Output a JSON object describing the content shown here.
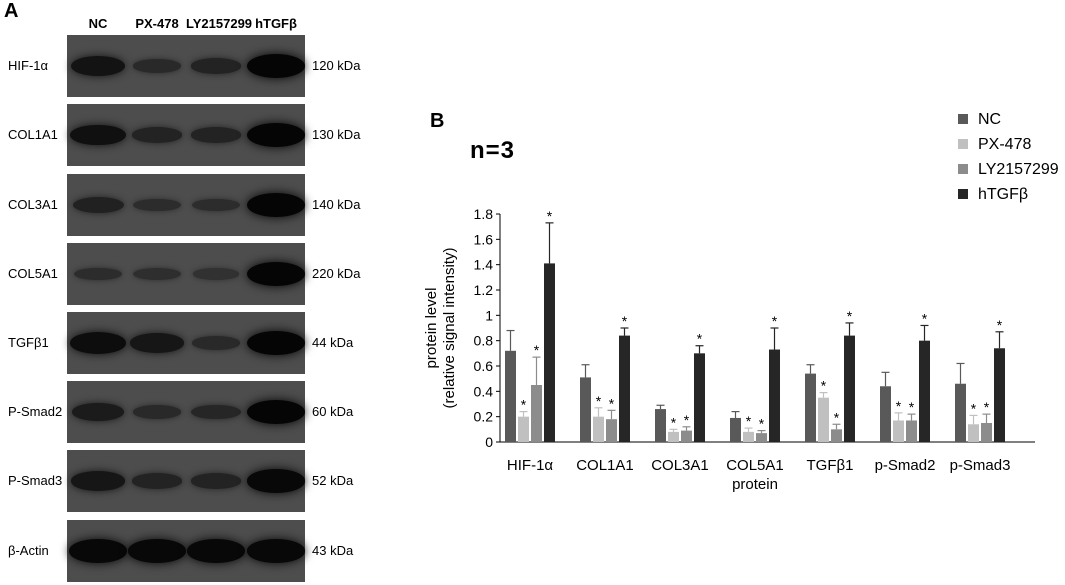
{
  "panel_a": {
    "letter": "A",
    "lanes": [
      "NC",
      "PX-478",
      "LY2157299",
      "hTGFβ"
    ],
    "rows": [
      {
        "protein": "HIF-1α",
        "kda": "120 kDa",
        "intensity": [
          0.75,
          0.35,
          0.45,
          1.0
        ]
      },
      {
        "protein": "COL1A1",
        "kda": "130 kDa",
        "intensity": [
          0.8,
          0.45,
          0.45,
          1.0
        ]
      },
      {
        "protein": "COL3A1",
        "kda": "140 kDa",
        "intensity": [
          0.5,
          0.3,
          0.3,
          1.0
        ]
      },
      {
        "protein": "COL5A1",
        "kda": "220 kDa",
        "intensity": [
          0.3,
          0.25,
          0.2,
          1.0
        ]
      },
      {
        "protein": "TGFβ1",
        "kda": "44 kDa",
        "intensity": [
          0.85,
          0.7,
          0.35,
          1.0
        ]
      },
      {
        "protein": "P-Smad2",
        "kda": "60 kDa",
        "intensity": [
          0.6,
          0.35,
          0.4,
          1.0
        ]
      },
      {
        "protein": "P-Smad3",
        "kda": "52 kDa",
        "intensity": [
          0.7,
          0.45,
          0.45,
          0.95
        ]
      },
      {
        "protein": "β-Actin",
        "kda": "43 kDa",
        "intensity": [
          0.95,
          0.95,
          0.95,
          0.95
        ]
      }
    ]
  },
  "panel_b": {
    "letter": "B",
    "n_label": "n=3"
  },
  "chart_data": {
    "type": "bar",
    "title": "",
    "ylabel_line1": "protein level",
    "ylabel_line2": "(relative signal intensity)",
    "xlabel": "",
    "ylim": [
      0,
      1.8
    ],
    "yticks": [
      "0",
      "0.2",
      "0.4",
      "0.6",
      "0.8",
      "1",
      "1.2",
      "1.4",
      "1.6",
      "1.8"
    ],
    "categories": [
      "HIF-1α",
      "COL1A1",
      "COL3A1",
      "COL5A1\nprotein",
      "TGFβ1",
      "p-Smad2",
      "p-Smad3"
    ],
    "legend_position": "top-right",
    "series": [
      {
        "name": "NC",
        "color": "#595959",
        "values": [
          0.72,
          0.51,
          0.26,
          0.19,
          0.54,
          0.44,
          0.46
        ],
        "errors": [
          0.16,
          0.1,
          0.03,
          0.05,
          0.07,
          0.11,
          0.16
        ],
        "stars": [
          false,
          false,
          false,
          false,
          false,
          false,
          false
        ]
      },
      {
        "name": "PX-478",
        "color": "#c0c0c0",
        "values": [
          0.2,
          0.2,
          0.08,
          0.08,
          0.35,
          0.17,
          0.14
        ],
        "errors": [
          0.04,
          0.07,
          0.02,
          0.03,
          0.04,
          0.06,
          0.07
        ],
        "stars": [
          true,
          true,
          true,
          true,
          true,
          true,
          true
        ]
      },
      {
        "name": "LY2157299",
        "color": "#8c8c8c",
        "values": [
          0.45,
          0.18,
          0.09,
          0.07,
          0.1,
          0.17,
          0.15
        ],
        "errors": [
          0.22,
          0.07,
          0.03,
          0.02,
          0.04,
          0.05,
          0.07
        ],
        "stars": [
          true,
          true,
          true,
          true,
          true,
          true,
          true
        ]
      },
      {
        "name": "hTGFβ",
        "color": "#262626",
        "values": [
          1.41,
          0.84,
          0.7,
          0.73,
          0.84,
          0.8,
          0.74
        ],
        "errors": [
          0.32,
          0.06,
          0.06,
          0.17,
          0.1,
          0.12,
          0.13
        ],
        "stars": [
          true,
          true,
          true,
          true,
          true,
          true,
          true
        ]
      }
    ],
    "star_symbol": "*"
  }
}
